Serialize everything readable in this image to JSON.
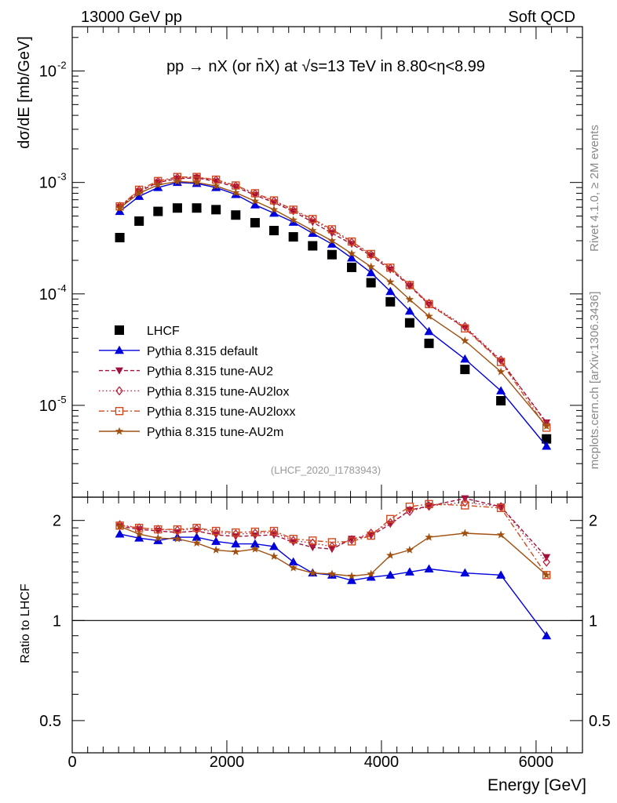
{
  "header": {
    "left": "13000 GeV pp",
    "right": "Soft QCD"
  },
  "side": {
    "rivet": "Rivet 4.1.0, ≥ 2M events",
    "mcplots": "mcplots.cern.ch [arXiv:1306.3436]"
  },
  "analysis_id": "(LHCF_2020_I1783943)",
  "chart_data": [
    {
      "type": "line",
      "title": "pp → nX (or n̄X) at √s=13 TeV in 8.80<η<8.99",
      "xlabel": "Energy [GeV]",
      "ylabel": "dσ/dE [mb/GeV]",
      "yscale": "log",
      "xlim": [
        0,
        6600
      ],
      "ylim": [
        1.5e-06,
        0.025
      ],
      "grid": false,
      "legend_position": "left",
      "x": [
        615,
        865,
        1110,
        1360,
        1610,
        1860,
        2115,
        2365,
        2610,
        2860,
        3110,
        3360,
        3615,
        3865,
        4115,
        4365,
        4615,
        5080,
        5545,
        6135
      ],
      "series": [
        {
          "name": "LHCF",
          "color": "#000000",
          "marker": "square",
          "line": "none",
          "values": [
            0.00032,
            0.00045,
            0.00055,
            0.00059,
            0.00059,
            0.00057,
            0.00051,
            0.000435,
            0.00037,
            0.000325,
            0.00027,
            0.000225,
            0.000173,
            0.000126,
            8.5e-05,
            5.5e-05,
            3.6e-05,
            2.1e-05,
            1.1e-05,
            5e-06
          ]
        },
        {
          "name": "Pythia 8.315 default",
          "color": "#0000dd",
          "marker": "triangle-up",
          "line": "solid",
          "values": [
            0.00055,
            0.00075,
            0.0009,
            0.001,
            0.00098,
            0.0009,
            0.00078,
            0.00063,
            0.00053,
            0.00044,
            0.00035,
            0.00028,
            0.00021,
            0.000155,
            0.000105,
            7e-05,
            4.6e-05,
            2.6e-05,
            1.35e-05,
            4.3e-06
          ]
        },
        {
          "name": "Pythia 8.315 tune-AU2",
          "color": "#a0103a",
          "marker": "triangle-down",
          "line": "dashed",
          "values": [
            0.0006,
            0.00083,
            0.001,
            0.00108,
            0.0011,
            0.00102,
            0.00091,
            0.00077,
            0.00066,
            0.00055,
            0.00044,
            0.00035,
            0.00028,
            0.00022,
            0.000165,
            0.000118,
            8e-05,
            5e-05,
            2.5e-05,
            7e-06
          ]
        },
        {
          "name": "Pythia 8.315 tune-AU2lox",
          "color": "#c0203a",
          "marker": "diamond-open",
          "line": "dotted",
          "values": [
            0.00061,
            0.00085,
            0.00102,
            0.0011,
            0.00111,
            0.00105,
            0.00093,
            0.00079,
            0.00068,
            0.00056,
            0.00046,
            0.00037,
            0.00029,
            0.000225,
            0.00017,
            0.00012,
            8.2e-05,
            5.1e-05,
            2.55e-05,
            6.8e-06
          ]
        },
        {
          "name": "Pythia 8.315 tune-AU2loxx",
          "color": "#d04a20",
          "marker": "square-open",
          "line": "dashdot",
          "values": [
            0.00061,
            0.00086,
            0.00103,
            0.00112,
            0.00112,
            0.00106,
            0.00094,
            0.0008,
            0.00069,
            0.00057,
            0.00047,
            0.00038,
            0.000295,
            0.000228,
            0.000172,
            0.00012,
            8.1e-05,
            4.9e-05,
            2.45e-05,
            6.3e-06
          ]
        },
        {
          "name": "Pythia 8.315 tune-AU2m",
          "color": "#a05010",
          "marker": "star",
          "line": "solid",
          "values": [
            0.00059,
            0.0008,
            0.00095,
            0.00102,
            0.001,
            0.00093,
            0.00081,
            0.00068,
            0.00057,
            0.00046,
            0.00037,
            0.0003,
            0.00023,
            0.000175,
            0.000128,
            8.9e-05,
            6.3e-05,
            3.8e-05,
            2e-05,
            6.5e-06
          ]
        }
      ]
    },
    {
      "type": "line",
      "title": "",
      "xlabel": "Energy [GeV]",
      "ylabel": "Ratio to LHCF",
      "yscale": "log",
      "xlim": [
        0,
        6600
      ],
      "ylim": [
        0.4,
        2.35
      ],
      "reference_line": 1,
      "grid": false,
      "x": [
        615,
        865,
        1110,
        1360,
        1610,
        1860,
        2115,
        2365,
        2610,
        2860,
        3110,
        3360,
        3615,
        3865,
        4115,
        4365,
        4615,
        5080,
        5545,
        6135
      ],
      "series": [
        {
          "name": "Pythia 8.315 default",
          "color": "#0000dd",
          "marker": "triangle-up",
          "line": "solid",
          "values": [
            1.82,
            1.77,
            1.74,
            1.78,
            1.78,
            1.73,
            1.7,
            1.7,
            1.67,
            1.5,
            1.39,
            1.37,
            1.32,
            1.35,
            1.37,
            1.4,
            1.43,
            1.39,
            1.37,
            0.9
          ]
        },
        {
          "name": "Pythia 8.315 tune-AU2",
          "color": "#a0103a",
          "marker": "triangle-down",
          "line": "dashed",
          "values": [
            1.92,
            1.88,
            1.86,
            1.84,
            1.86,
            1.81,
            1.79,
            1.8,
            1.81,
            1.72,
            1.66,
            1.64,
            1.76,
            1.8,
            1.95,
            2.15,
            2.21,
            2.33,
            2.2,
            1.55
          ]
        },
        {
          "name": "Pythia 8.315 tune-AU2lox",
          "color": "#c0203a",
          "marker": "diamond-open",
          "line": "dotted",
          "values": [
            1.94,
            1.9,
            1.88,
            1.87,
            1.89,
            1.84,
            1.82,
            1.83,
            1.84,
            1.74,
            1.71,
            1.67,
            1.75,
            1.83,
            1.97,
            2.13,
            2.21,
            2.27,
            2.2,
            1.5
          ]
        },
        {
          "name": "Pythia 8.315 tune-AU2loxx",
          "color": "#d04a20",
          "marker": "square-open",
          "line": "dashdot",
          "values": [
            1.93,
            1.9,
            1.88,
            1.88,
            1.9,
            1.86,
            1.84,
            1.85,
            1.86,
            1.76,
            1.74,
            1.72,
            1.73,
            1.8,
            2.02,
            2.2,
            2.24,
            2.22,
            2.18,
            1.37
          ]
        },
        {
          "name": "Pythia 8.315 tune-AU2m",
          "color": "#a05010",
          "marker": "star",
          "line": "solid",
          "values": [
            1.92,
            1.82,
            1.77,
            1.76,
            1.71,
            1.63,
            1.61,
            1.64,
            1.56,
            1.44,
            1.39,
            1.38,
            1.36,
            1.38,
            1.57,
            1.63,
            1.78,
            1.83,
            1.81,
            1.37
          ]
        }
      ]
    }
  ]
}
